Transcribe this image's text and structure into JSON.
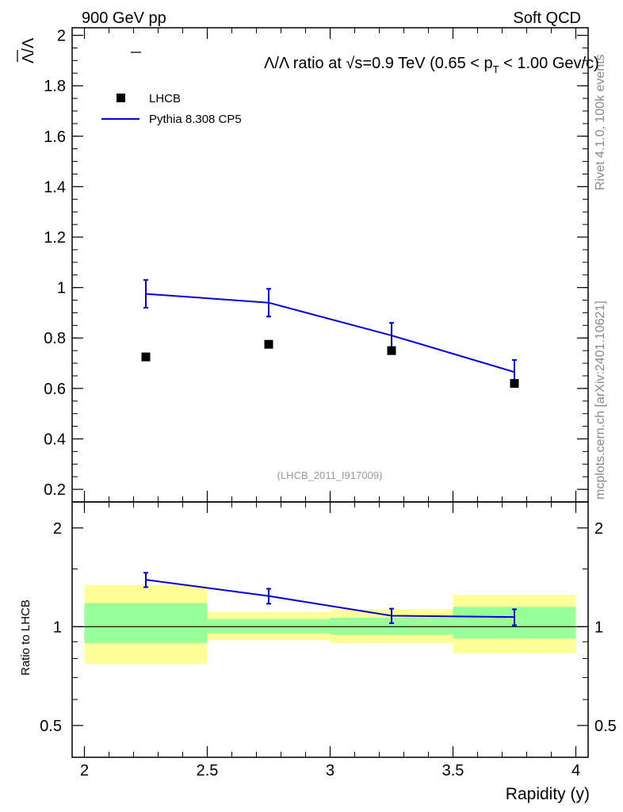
{
  "header": {
    "left": "900 GeV pp",
    "right": "Soft QCD"
  },
  "side_labels": {
    "rivet": "Rivet 4.1.0,  100k events",
    "mcplots": "mcplots.cern.ch [arXiv:2401.10621]"
  },
  "chart_data": [
    {
      "type": "scatter",
      "title_parts": {
        "prefix": "Λ/Λ ratio at √s=0.9 TeV (0.65 < p",
        "sub": "T",
        "suffix": " < 1.00 Gev/c)"
      },
      "ylabel": "Λ/Λ",
      "ylim": [
        0.15,
        2.03
      ],
      "yticks": [
        "0.2",
        "0.4",
        "0.6",
        "0.8",
        "1",
        "1.2",
        "1.4",
        "1.6",
        "1.8",
        "2"
      ],
      "analysis_label": "(LHCB_2011_I917009)",
      "legend": {
        "placement": "top-left",
        "data_label": "LHCB",
        "mc_label": "Pythia 8.308 CP5"
      },
      "series": [
        {
          "name": "LHCB",
          "x": [
            2.25,
            2.75,
            3.25,
            3.75
          ],
          "y": [
            0.725,
            0.775,
            0.75,
            0.62
          ],
          "color": "#000000"
        },
        {
          "name": "Pythia 8.308 CP5",
          "x": [
            2.25,
            2.75,
            3.25,
            3.75
          ],
          "y": [
            0.975,
            0.94,
            0.81,
            0.665
          ],
          "yerr": [
            0.055,
            0.055,
            0.05,
            0.048
          ],
          "color": "#0000dd"
        }
      ]
    },
    {
      "type": "line",
      "ylabel": "Ratio to LHCB",
      "ylim": [
        0.4,
        2.4
      ],
      "yscale": "log",
      "yticks": [
        "0.5",
        "1",
        "2"
      ],
      "xlabel": "Rapidity (y)",
      "xlim": [
        1.95,
        4.05
      ],
      "xticks": [
        "2",
        "2.5",
        "3",
        "3.5",
        "4"
      ],
      "bands": {
        "bins": [
          [
            2.0,
            2.5
          ],
          [
            2.5,
            3.0
          ],
          [
            3.0,
            3.5
          ],
          [
            3.5,
            4.0
          ]
        ],
        "yellow_lo": [
          0.77,
          0.91,
          0.89,
          0.83
        ],
        "yellow_hi": [
          1.34,
          1.11,
          1.13,
          1.25
        ],
        "green_lo": [
          0.89,
          0.955,
          0.945,
          0.92
        ],
        "green_hi": [
          1.18,
          1.055,
          1.065,
          1.15
        ],
        "yellow_color": "#ffff99",
        "green_color": "#99ff99"
      },
      "series": [
        {
          "name": "Pythia 8.308 CP5",
          "x": [
            2.25,
            2.75,
            3.25,
            3.75
          ],
          "y": [
            1.39,
            1.24,
            1.08,
            1.07
          ],
          "yerr": [
            0.07,
            0.065,
            0.055,
            0.06
          ],
          "color": "#0000dd"
        }
      ]
    }
  ]
}
